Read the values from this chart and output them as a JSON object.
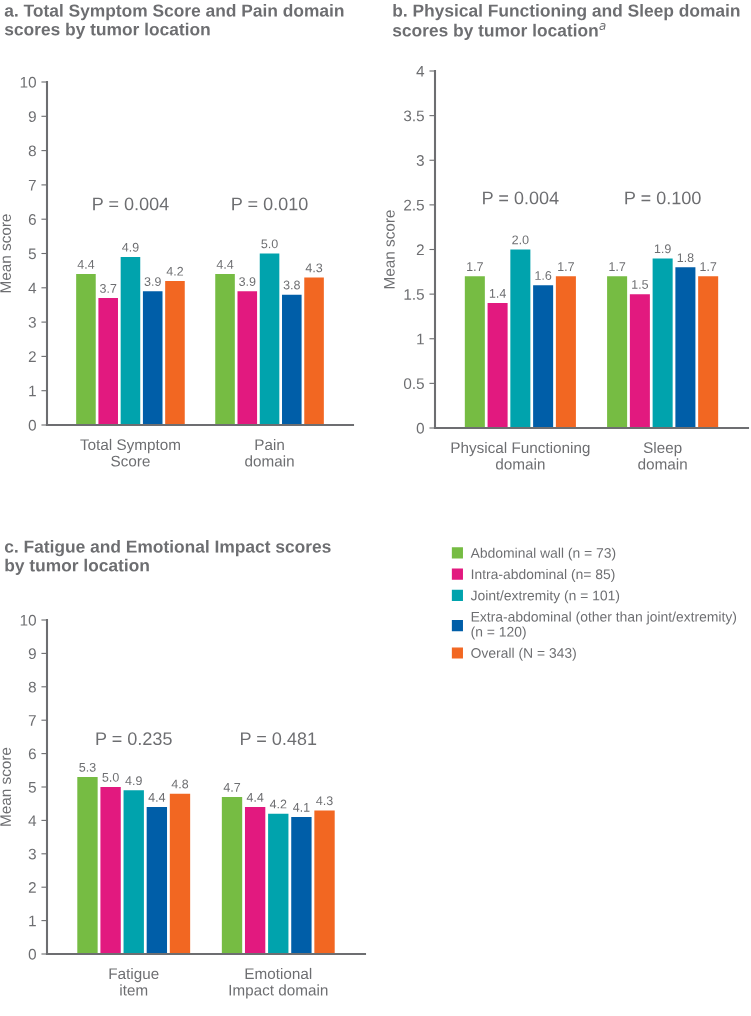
{
  "chart_data": [
    {
      "type": "bar",
      "title": "a. Total Symptom Score and Pain domain\nscores by tumor location",
      "ylabel": "Mean score",
      "categories": [
        "Total Symptom\nScore",
        "Pain\ndomain"
      ],
      "series": [
        {
          "color": "#76bc43",
          "values": [
            4.4,
            4.4
          ],
          "value_labels": [
            "4.4",
            "4.4"
          ]
        },
        {
          "color": "#e2197f",
          "values": [
            3.7,
            3.9
          ],
          "value_labels": [
            "3.7",
            "3.9"
          ]
        },
        {
          "color": "#00a3ad",
          "values": [
            4.9,
            5.0
          ],
          "value_labels": [
            "4.9",
            "5.0"
          ]
        },
        {
          "color": "#005ea8",
          "values": [
            3.9,
            3.8
          ],
          "value_labels": [
            "3.9",
            "3.8"
          ]
        },
        {
          "color": "#f26722",
          "values": [
            4.2,
            4.3
          ],
          "value_labels": [
            "4.2",
            "4.3"
          ]
        }
      ],
      "ylim": [
        0,
        10
      ],
      "yticks": [
        0,
        1,
        2,
        3,
        4,
        5,
        6,
        7,
        8,
        9,
        10
      ],
      "grid": false,
      "legend": false,
      "annotations": [
        "P = 0.004",
        "P = 0.010"
      ]
    },
    {
      "type": "bar",
      "title": "b. Physical Functioning and Sleep domain\nscores by tumor location$^{a}$",
      "ylabel": "Mean score",
      "categories": [
        "Physical Functioning\ndomain",
        "Sleep\ndomain"
      ],
      "series": [
        {
          "color": "#76bc43",
          "values": [
            1.7,
            1.7
          ],
          "value_labels": [
            "1.7",
            "1.7"
          ]
        },
        {
          "color": "#e2197f",
          "values": [
            1.4,
            1.5
          ],
          "value_labels": [
            "1.4",
            "1.5"
          ]
        },
        {
          "color": "#00a3ad",
          "values": [
            2.0,
            1.9
          ],
          "value_labels": [
            "2.0",
            "1.9"
          ]
        },
        {
          "color": "#005ea8",
          "values": [
            1.6,
            1.8
          ],
          "value_labels": [
            "1.6",
            "1.8"
          ]
        },
        {
          "color": "#f26722",
          "values": [
            1.7,
            1.7
          ],
          "value_labels": [
            "1.7",
            "1.7"
          ]
        }
      ],
      "ylim": [
        0,
        4
      ],
      "yticks": [
        0,
        {
          "value": 0.5,
          "label": "0.5"
        },
        1,
        {
          "value": 1.5,
          "label": "1.5"
        },
        2,
        {
          "value": 2.5,
          "label": "2.5"
        },
        3,
        {
          "value": 3.5,
          "label": "3.5"
        },
        4
      ],
      "grid": false,
      "legend": false,
      "annotations": [
        "P = 0.004",
        "P = 0.100"
      ]
    },
    {
      "type": "bar",
      "title": "c. Fatigue and Emotional Impact scores\nby tumor location",
      "ylabel": "Mean score",
      "categories": [
        "Fatigue\nitem",
        "Emotional\nImpact domain"
      ],
      "series": [
        {
          "name": "Abdominal wall (n = 73)",
          "color": "#76bc43",
          "values": [
            5.3,
            4.7
          ],
          "value_labels": [
            "5.3",
            "4.7"
          ]
        },
        {
          "name": "Intra-abdominal (n= 85)",
          "color": "#e2197f",
          "values": [
            5.0,
            4.4
          ],
          "value_labels": [
            "5.0",
            "4.4"
          ]
        },
        {
          "name": "Joint/extremity (n = 101)",
          "color": "#00a3ad",
          "values": [
            4.9,
            4.2
          ],
          "value_labels": [
            "4.9",
            "4.2"
          ]
        },
        {
          "name": "Extra-abdominal (other than joint/extremity)\n(n = 120)",
          "color": "#005ea8",
          "values": [
            4.4,
            4.1
          ],
          "value_labels": [
            "4.4",
            "4.1"
          ]
        },
        {
          "name": "Overall (N = 343)",
          "color": "#f26722",
          "values": [
            4.8,
            4.3
          ],
          "value_labels": [
            "4.8",
            "4.3"
          ]
        }
      ],
      "ylim": [
        0,
        10
      ],
      "yticks": [
        0,
        1,
        2,
        3,
        4,
        5,
        6,
        7,
        8,
        9,
        10
      ],
      "grid": false,
      "legend": "right",
      "annotations": [
        "P = 0.235",
        "P = 0.481"
      ]
    }
  ]
}
